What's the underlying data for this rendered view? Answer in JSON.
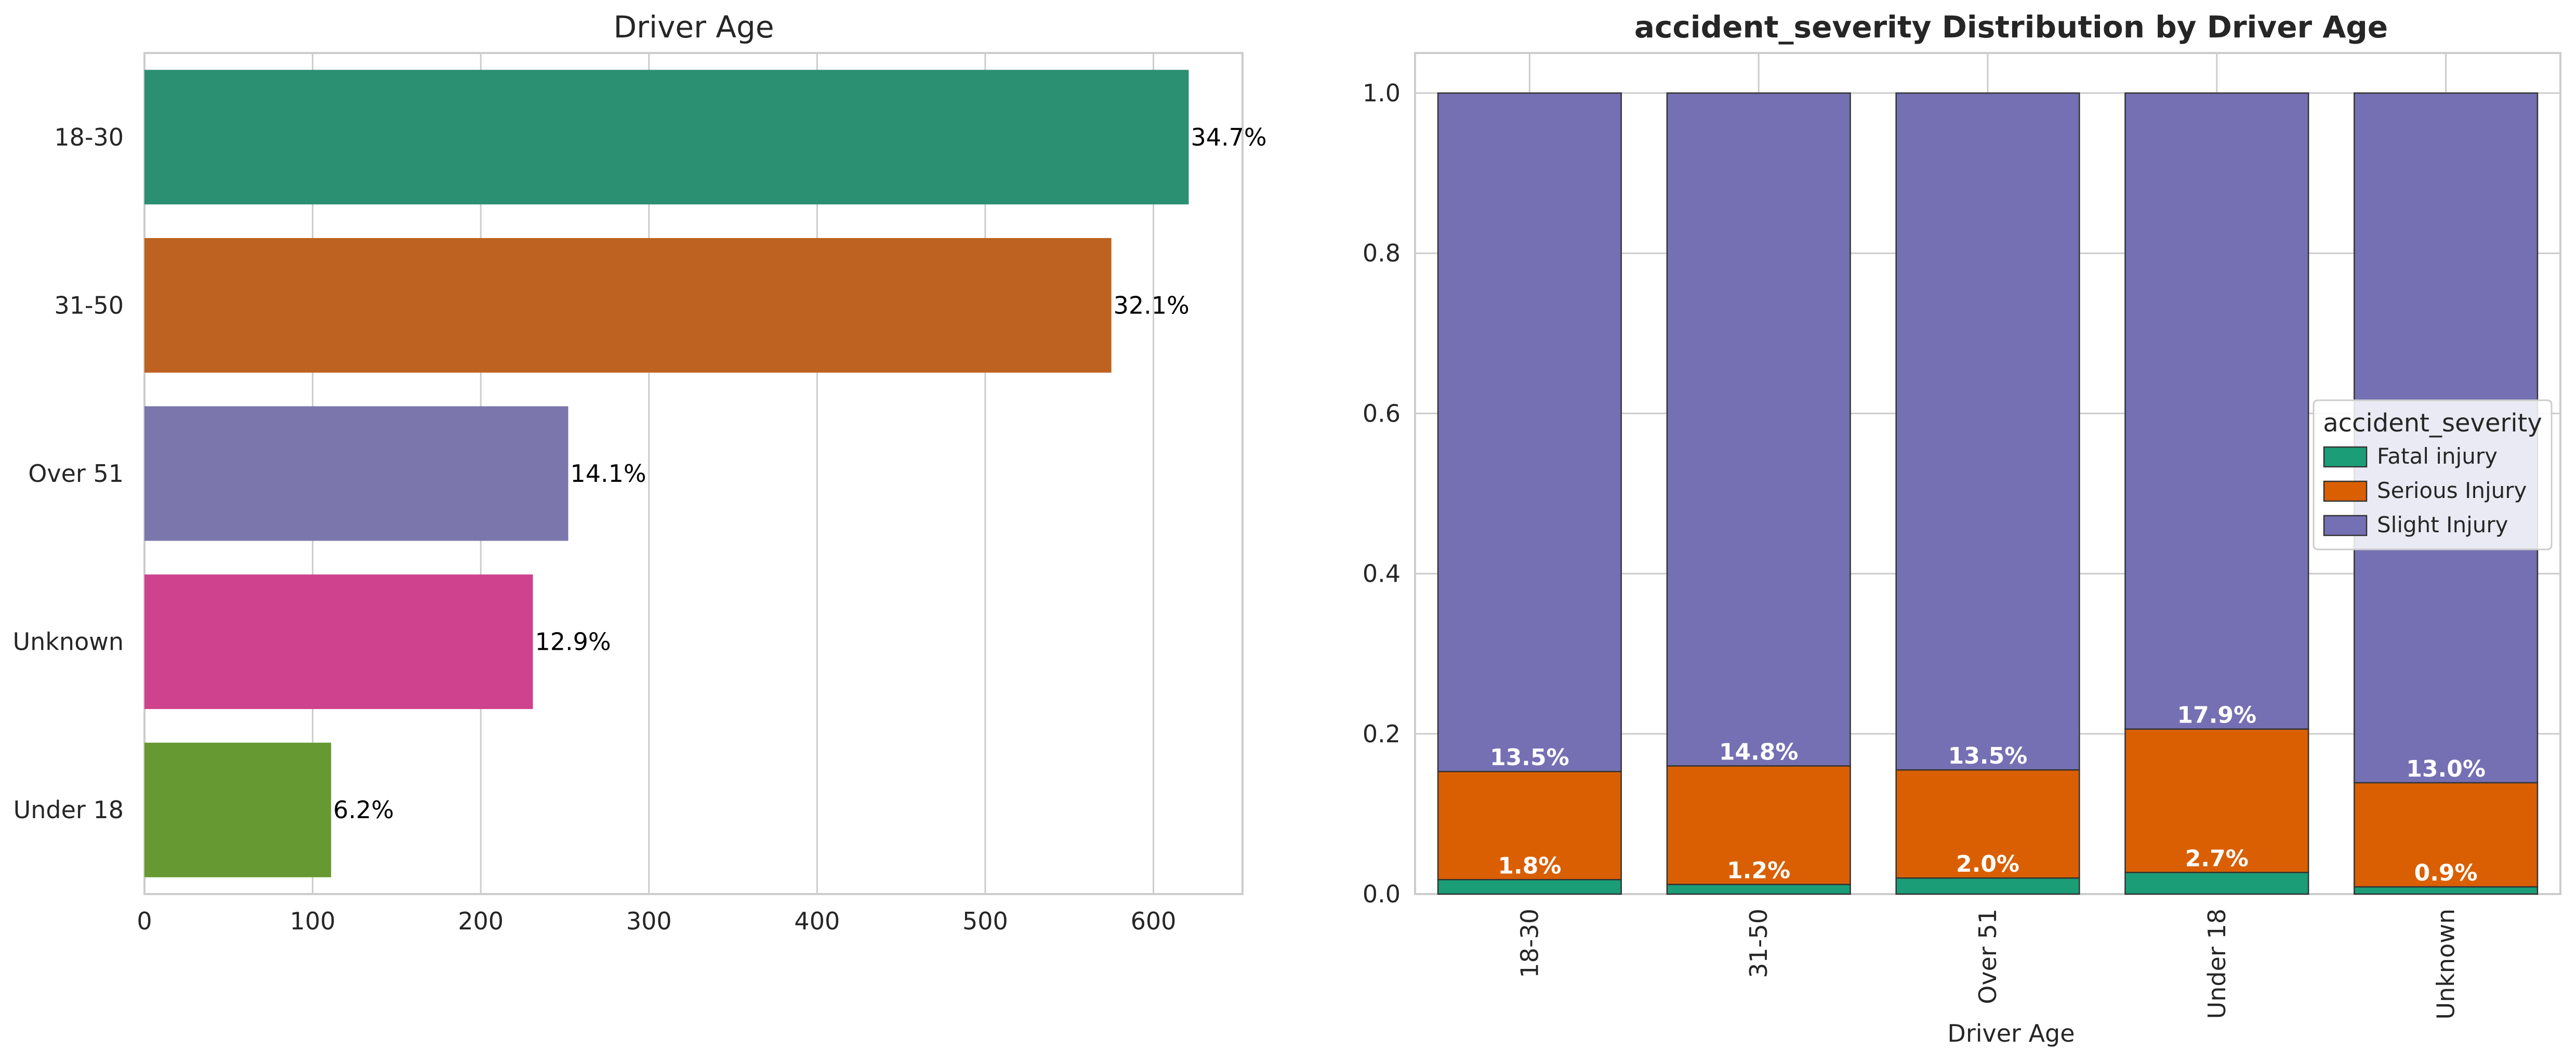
{
  "chart_data": [
    {
      "type": "bar",
      "orientation": "horizontal",
      "title": "Driver Age",
      "xlabel": "",
      "ylabel": "",
      "categories": [
        "18-30",
        "31-50",
        "Over 51",
        "Unknown",
        "Under 18"
      ],
      "values": [
        621,
        575,
        252,
        231,
        111
      ],
      "labels": [
        "34.7%",
        "32.1%",
        "14.1%",
        "12.9%",
        "6.2%"
      ],
      "colors": [
        "#2b8f72",
        "#bd6220",
        "#7b76ab",
        "#cf428d",
        "#669931"
      ],
      "xlim": [
        0,
        653
      ],
      "xticks": [
        0,
        100,
        200,
        300,
        400,
        500,
        600
      ],
      "grid": true
    },
    {
      "type": "bar",
      "stacked": true,
      "title": "accident_severity Distribution by Driver Age",
      "xlabel": "Driver Age",
      "ylabel": "",
      "categories": [
        "18-30",
        "31-50",
        "Over 51",
        "Under 18",
        "Unknown"
      ],
      "series": [
        {
          "name": "Fatal injury",
          "color": "#1b9e77",
          "values": [
            0.018,
            0.012,
            0.02,
            0.027,
            0.009
          ],
          "labels": [
            "1.8%",
            "1.2%",
            "2.0%",
            "2.7%",
            "0.9%"
          ]
        },
        {
          "name": "Serious Injury",
          "color": "#d95f02",
          "values": [
            0.135,
            0.148,
            0.135,
            0.179,
            0.13
          ],
          "labels": [
            "13.5%",
            "14.8%",
            "13.5%",
            "17.9%",
            "13.0%"
          ]
        },
        {
          "name": "Slight Injury",
          "color": "#7570b3",
          "values": [
            0.847,
            0.84,
            0.845,
            0.794,
            0.861
          ]
        }
      ],
      "ylim": [
        0,
        1.05
      ],
      "yticks": [
        "0.0",
        "0.2",
        "0.4",
        "0.6",
        "0.8",
        "1.0"
      ],
      "legend": {
        "title": "accident_severity",
        "placement": "center-right"
      },
      "grid": true
    }
  ]
}
